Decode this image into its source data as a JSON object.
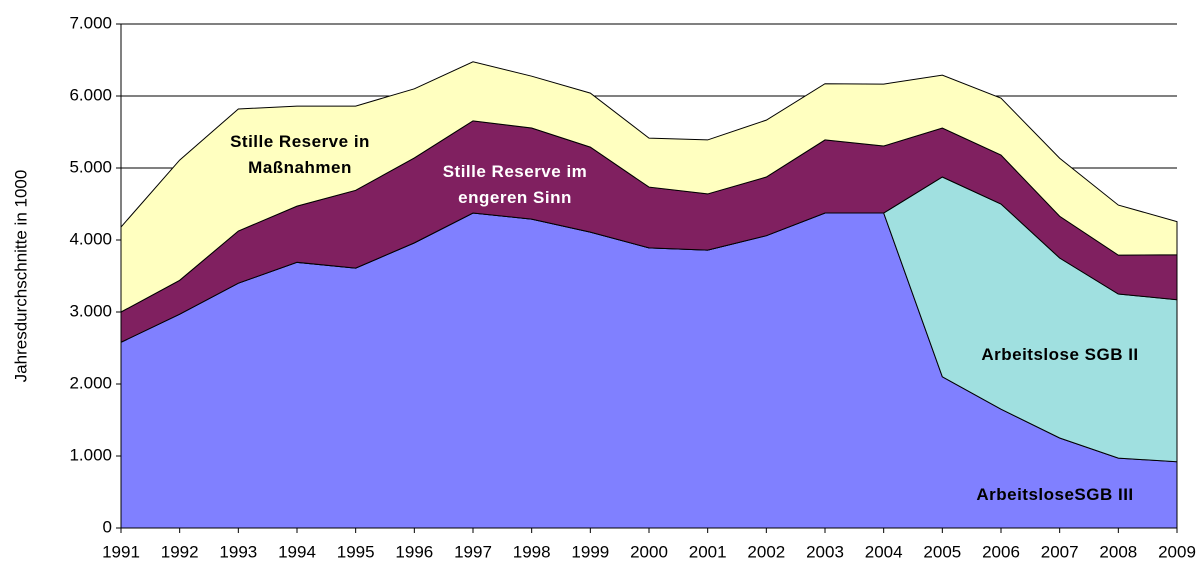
{
  "chart_data": {
    "type": "stacked_area",
    "y_label": "Jahresdurchschnitte in 1000",
    "categories": [
      "1991",
      "1992",
      "1993",
      "1994",
      "1995",
      "1996",
      "1997",
      "1998",
      "1999",
      "2000",
      "2001",
      "2002",
      "2003",
      "2004",
      "2005",
      "2006",
      "2007",
      "2008",
      "2009"
    ],
    "series": [
      {
        "name": "ArbeitsloseSGB III",
        "color": "#8080ff",
        "label_color": "#000000",
        "values": [
          2580,
          2970,
          3400,
          3690,
          3610,
          3960,
          4375,
          4290,
          4110,
          3890,
          3860,
          4060,
          4375,
          4375,
          2100,
          1650,
          1250,
          970,
          920
        ]
      },
      {
        "name": "Arbeitslose SGB II",
        "color": "#a0e0e0",
        "label_color": "#000000",
        "values": [
          0,
          0,
          0,
          0,
          0,
          0,
          0,
          0,
          0,
          0,
          0,
          0,
          0,
          0,
          2775,
          2850,
          2500,
          2280,
          2250
        ]
      },
      {
        "name": "Stille Reserve im engeren Sinn",
        "color": "#802060",
        "label_color": "#ffffff",
        "values": [
          420,
          470,
          725,
          780,
          1080,
          1180,
          1280,
          1265,
          1180,
          845,
          780,
          815,
          1015,
          930,
          680,
          680,
          580,
          540,
          625
        ]
      },
      {
        "name": "Stille Reserve in Maßnahmen",
        "color": "#ffffc0",
        "label_color": "#000000",
        "values": [
          1180,
          1670,
          1695,
          1390,
          1170,
          960,
          820,
          720,
          750,
          680,
          750,
          790,
          780,
          860,
          735,
          790,
          805,
          695,
          460
        ]
      }
    ],
    "ylim": [
      0,
      7000
    ],
    "yticks": [
      0,
      {
        "value": 1000,
        "label": "1.000"
      },
      {
        "value": 2000,
        "label": "2.000"
      },
      {
        "value": 3000,
        "label": "3.000"
      },
      {
        "value": 4000,
        "label": "4.000"
      },
      {
        "value": 5000,
        "label": "5.000"
      },
      {
        "value": 6000,
        "label": "6.000"
      },
      {
        "value": 7000,
        "label": "7.000"
      }
    ],
    "grid": true
  }
}
